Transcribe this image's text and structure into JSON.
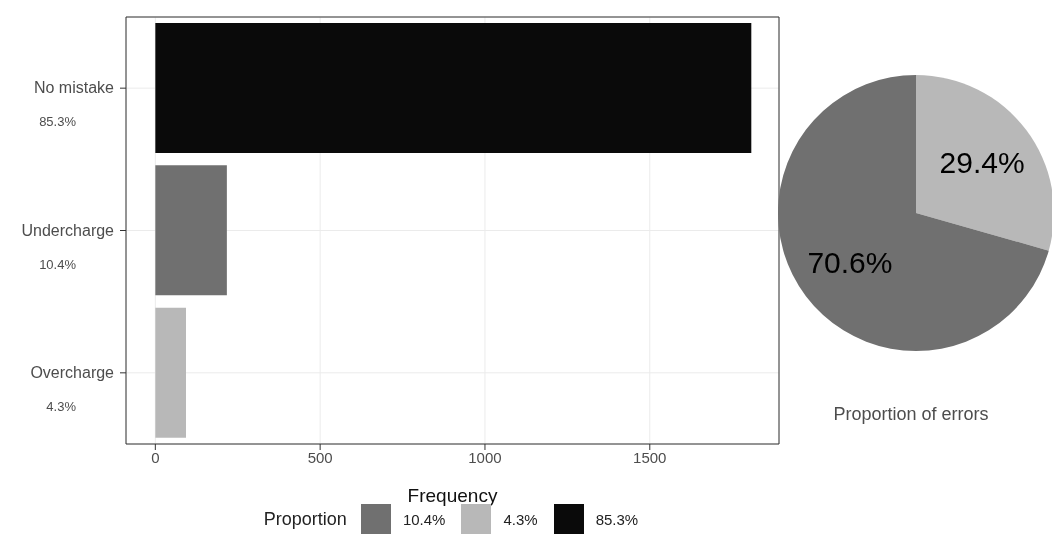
{
  "chart_data": [
    {
      "type": "bar",
      "orientation": "horizontal",
      "stacked": true,
      "categories": [
        "No mistake",
        "Undercharge",
        "Overcharge"
      ],
      "annotations": [
        "85.3%",
        "10.4%",
        "4.3%"
      ],
      "xlabel": "Frequency",
      "xlim": [
        -89,
        1892
      ],
      "xticks": [
        0,
        500,
        1000,
        1500
      ],
      "grid": true,
      "legend": "bottom",
      "legend_title": "Proportion",
      "series": [
        {
          "name": "10.4%",
          "color": "#707070",
          "values": [
            null,
            217,
            null
          ]
        },
        {
          "name": "4.3%",
          "color": "#b8b8b8",
          "values": [
            null,
            null,
            93
          ]
        },
        {
          "name": "85.3%",
          "color": "#0a0a0a",
          "values": [
            1808,
            null,
            null
          ]
        }
      ]
    },
    {
      "type": "pie",
      "title": "Proportion of errors",
      "categories": [
        null,
        null
      ],
      "values": [
        29.4,
        70.6
      ],
      "colors": [
        "#b8b8b8",
        "#707070"
      ],
      "value_labels": [
        "29.4%",
        "70.6%"
      ]
    }
  ]
}
